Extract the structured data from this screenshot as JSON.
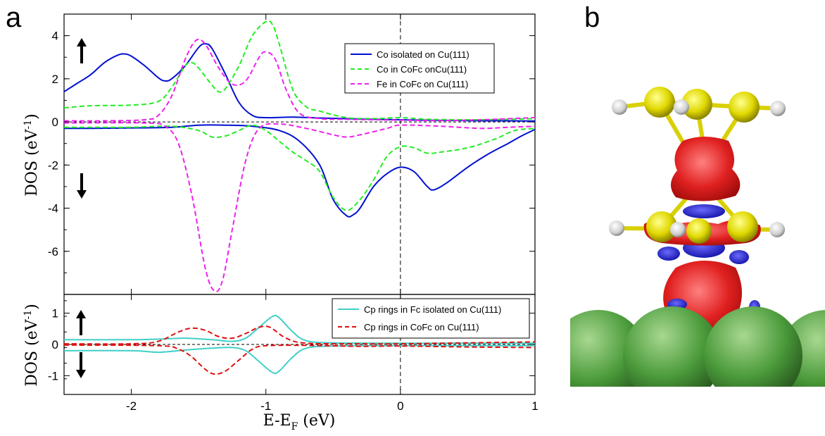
{
  "panels": {
    "left_label": "a",
    "right_label": "b"
  },
  "colors": {
    "co_isolated": "#0010d0",
    "co_in_cofc": "#22ee22",
    "fe_in_cofc": "#ee22ee",
    "cp_fc": "#40d0c8",
    "cp_cofc": "#e01010",
    "density_red": "#e02020",
    "density_blue": "#1a1ad8",
    "atom_c": "#e8e000",
    "atom_h": "#e8e8e8",
    "atom_cu": "#4a9a3a"
  },
  "chart_data": [
    {
      "type": "line",
      "xlim": [
        -2.5,
        1
      ],
      "ylim": [
        -8,
        5
      ],
      "x_ticks": [
        "-2",
        "-1",
        "0",
        "1"
      ],
      "y_ticks": [
        "4",
        "2",
        "0",
        "-2",
        "-4",
        "-6"
      ],
      "ylabel_base": "DOS (eV",
      "ylabel_exp": "-1",
      "ylabel_close": ")",
      "arrow_up": "spin-up-arrow-icon",
      "arrow_down": "spin-down-arrow-icon",
      "series": [
        {
          "name": "Co isolated on Cu(111)",
          "style": "solid",
          "up": [
            [
              -2.5,
              1.4
            ],
            [
              -2.4,
              1.8
            ],
            [
              -2.3,
              2.2
            ],
            [
              -2.2,
              2.75
            ],
            [
              -2.1,
              3.1
            ],
            [
              -2.05,
              3.15
            ],
            [
              -2.0,
              3.05
            ],
            [
              -1.9,
              2.6
            ],
            [
              -1.8,
              2.05
            ],
            [
              -1.75,
              1.9
            ],
            [
              -1.7,
              2.0
            ],
            [
              -1.6,
              2.6
            ],
            [
              -1.5,
              3.45
            ],
            [
              -1.45,
              3.62
            ],
            [
              -1.4,
              3.4
            ],
            [
              -1.3,
              2.2
            ],
            [
              -1.2,
              0.9
            ],
            [
              -1.1,
              0.3
            ],
            [
              -1.0,
              0.2
            ],
            [
              -0.8,
              0.22
            ],
            [
              -0.6,
              0.18
            ],
            [
              -0.4,
              0.15
            ],
            [
              -0.2,
              0.12
            ],
            [
              0.0,
              0.1
            ],
            [
              0.2,
              0.08
            ],
            [
              0.5,
              0.06
            ],
            [
              0.8,
              0.05
            ],
            [
              1.0,
              0.04
            ]
          ],
          "down": [
            [
              -2.5,
              -0.3
            ],
            [
              -2.3,
              -0.3
            ],
            [
              -2.0,
              -0.28
            ],
            [
              -1.7,
              -0.25
            ],
            [
              -1.5,
              -0.15
            ],
            [
              -1.3,
              -0.15
            ],
            [
              -1.1,
              -0.2
            ],
            [
              -0.9,
              -0.4
            ],
            [
              -0.75,
              -0.9
            ],
            [
              -0.6,
              -2.0
            ],
            [
              -0.5,
              -3.6
            ],
            [
              -0.4,
              -4.35
            ],
            [
              -0.35,
              -4.3
            ],
            [
              -0.3,
              -4.0
            ],
            [
              -0.2,
              -3.0
            ],
            [
              -0.1,
              -2.4
            ],
            [
              0.0,
              -2.1
            ],
            [
              0.1,
              -2.3
            ],
            [
              0.2,
              -3.0
            ],
            [
              0.25,
              -3.15
            ],
            [
              0.35,
              -2.8
            ],
            [
              0.5,
              -2.1
            ],
            [
              0.65,
              -1.5
            ],
            [
              0.8,
              -1.0
            ],
            [
              0.9,
              -0.65
            ],
            [
              1.0,
              -0.35
            ]
          ]
        },
        {
          "name": "Co in CoFc onCu(111)",
          "style": "dashed",
          "up": [
            [
              -2.5,
              0.65
            ],
            [
              -2.3,
              0.75
            ],
            [
              -2.0,
              0.78
            ],
            [
              -1.8,
              0.95
            ],
            [
              -1.7,
              1.6
            ],
            [
              -1.6,
              2.6
            ],
            [
              -1.55,
              2.75
            ],
            [
              -1.5,
              2.5
            ],
            [
              -1.4,
              1.7
            ],
            [
              -1.35,
              1.4
            ],
            [
              -1.3,
              1.55
            ],
            [
              -1.2,
              2.6
            ],
            [
              -1.1,
              4.0
            ],
            [
              -1.0,
              4.65
            ],
            [
              -0.95,
              4.5
            ],
            [
              -0.9,
              3.6
            ],
            [
              -0.8,
              1.5
            ],
            [
              -0.7,
              0.7
            ],
            [
              -0.6,
              0.5
            ],
            [
              -0.4,
              0.2
            ],
            [
              -0.2,
              0.15
            ],
            [
              0.0,
              0.2
            ],
            [
              0.2,
              0.12
            ],
            [
              0.5,
              0.1
            ],
            [
              0.8,
              0.12
            ],
            [
              1.0,
              0.15
            ]
          ],
          "down": [
            [
              -2.5,
              -0.25
            ],
            [
              -2.3,
              -0.25
            ],
            [
              -2.0,
              -0.25
            ],
            [
              -1.7,
              -0.2
            ],
            [
              -1.5,
              -0.4
            ],
            [
              -1.4,
              -0.7
            ],
            [
              -1.3,
              -0.65
            ],
            [
              -1.2,
              -0.4
            ],
            [
              -1.1,
              -0.15
            ],
            [
              -1.0,
              -0.4
            ],
            [
              -0.9,
              -0.9
            ],
            [
              -0.8,
              -1.4
            ],
            [
              -0.7,
              -1.8
            ],
            [
              -0.6,
              -2.3
            ],
            [
              -0.5,
              -3.5
            ],
            [
              -0.4,
              -4.1
            ],
            [
              -0.3,
              -3.6
            ],
            [
              -0.2,
              -2.7
            ],
            [
              -0.1,
              -1.6
            ],
            [
              0.0,
              -1.15
            ],
            [
              0.1,
              -1.2
            ],
            [
              0.2,
              -1.45
            ],
            [
              0.3,
              -1.4
            ],
            [
              0.5,
              -1.2
            ],
            [
              0.7,
              -0.8
            ],
            [
              0.85,
              -0.4
            ],
            [
              1.0,
              -0.3
            ]
          ]
        },
        {
          "name": "Fe in CoFc on Cu(111)",
          "style": "dashed",
          "up": [
            [
              -2.5,
              0.05
            ],
            [
              -2.2,
              0.05
            ],
            [
              -1.9,
              0.1
            ],
            [
              -1.8,
              0.3
            ],
            [
              -1.7,
              1.2
            ],
            [
              -1.6,
              2.9
            ],
            [
              -1.52,
              3.78
            ],
            [
              -1.45,
              3.6
            ],
            [
              -1.35,
              2.5
            ],
            [
              -1.25,
              1.75
            ],
            [
              -1.15,
              1.9
            ],
            [
              -1.05,
              3.0
            ],
            [
              -1.0,
              3.25
            ],
            [
              -0.93,
              2.9
            ],
            [
              -0.85,
              1.5
            ],
            [
              -0.75,
              0.4
            ],
            [
              -0.6,
              0.15
            ],
            [
              -0.4,
              0.12
            ],
            [
              -0.2,
              0.1
            ],
            [
              0.0,
              0.08
            ],
            [
              0.3,
              0.06
            ],
            [
              0.6,
              0.1
            ],
            [
              0.8,
              0.15
            ],
            [
              1.0,
              0.2
            ]
          ],
          "down": [
            [
              -2.5,
              -0.05
            ],
            [
              -1.9,
              -0.05
            ],
            [
              -1.75,
              -0.2
            ],
            [
              -1.65,
              -1.0
            ],
            [
              -1.55,
              -3.4
            ],
            [
              -1.45,
              -6.8
            ],
            [
              -1.38,
              -7.85
            ],
            [
              -1.32,
              -7.3
            ],
            [
              -1.25,
              -5.0
            ],
            [
              -1.15,
              -1.8
            ],
            [
              -1.05,
              -0.3
            ],
            [
              -0.9,
              -0.1
            ],
            [
              -0.7,
              -0.3
            ],
            [
              -0.5,
              -0.6
            ],
            [
              -0.4,
              -0.7
            ],
            [
              -0.3,
              -0.6
            ],
            [
              -0.1,
              -0.3
            ],
            [
              0.0,
              -0.15
            ],
            [
              0.3,
              -0.2
            ],
            [
              0.6,
              -0.3
            ],
            [
              0.8,
              -0.25
            ],
            [
              1.0,
              -0.2
            ]
          ]
        }
      ]
    },
    {
      "type": "line",
      "xlim": [
        -2.5,
        1
      ],
      "ylim": [
        -1.6,
        1.6
      ],
      "x_ticks": [
        "-2",
        "-1",
        "0",
        "1"
      ],
      "y_ticks": [
        "1",
        "0",
        "-1"
      ],
      "xlabel_base": "E-E",
      "xlabel_sub": "F",
      "xlabel_unit": " (eV)",
      "ylabel_base": "DOS (eV",
      "ylabel_exp": "-1",
      "ylabel_close": ")",
      "series": [
        {
          "name": "Cp rings in Fc isolated on Cu(111)",
          "style": "solid",
          "up": [
            [
              -2.5,
              0.15
            ],
            [
              -2.0,
              0.15
            ],
            [
              -1.8,
              0.17
            ],
            [
              -1.6,
              0.2
            ],
            [
              -1.4,
              0.15
            ],
            [
              -1.25,
              0.1
            ],
            [
              -1.15,
              0.2
            ],
            [
              -1.05,
              0.55
            ],
            [
              -0.95,
              0.9
            ],
            [
              -0.9,
              0.85
            ],
            [
              -0.8,
              0.4
            ],
            [
              -0.7,
              0.12
            ],
            [
              -0.5,
              0.05
            ],
            [
              0.0,
              0.04
            ],
            [
              0.5,
              0.04
            ],
            [
              1.0,
              0.04
            ]
          ],
          "down": [
            [
              -2.5,
              -0.2
            ],
            [
              -2.0,
              -0.2
            ],
            [
              -1.8,
              -0.25
            ],
            [
              -1.6,
              -0.18
            ],
            [
              -1.4,
              -0.12
            ],
            [
              -1.25,
              -0.1
            ],
            [
              -1.15,
              -0.2
            ],
            [
              -1.05,
              -0.55
            ],
            [
              -0.95,
              -0.9
            ],
            [
              -0.9,
              -0.85
            ],
            [
              -0.8,
              -0.4
            ],
            [
              -0.7,
              -0.12
            ],
            [
              -0.5,
              -0.05
            ],
            [
              0.0,
              -0.04
            ],
            [
              0.5,
              -0.04
            ],
            [
              1.0,
              -0.04
            ]
          ]
        },
        {
          "name": "Cp rings in CoFc on Cu(111)",
          "style": "dashed",
          "up": [
            [
              -2.5,
              0.02
            ],
            [
              -2.0,
              0.02
            ],
            [
              -1.8,
              0.1
            ],
            [
              -1.65,
              0.4
            ],
            [
              -1.55,
              0.52
            ],
            [
              -1.45,
              0.45
            ],
            [
              -1.35,
              0.25
            ],
            [
              -1.25,
              0.2
            ],
            [
              -1.15,
              0.35
            ],
            [
              -1.05,
              0.55
            ],
            [
              -0.97,
              0.55
            ],
            [
              -0.85,
              0.2
            ],
            [
              -0.7,
              0.04
            ],
            [
              -0.3,
              0.02
            ],
            [
              0.0,
              0.02
            ],
            [
              0.5,
              0.05
            ],
            [
              1.0,
              0.08
            ]
          ],
          "down": [
            [
              -2.5,
              -0.02
            ],
            [
              -1.8,
              -0.04
            ],
            [
              -1.65,
              -0.15
            ],
            [
              -1.55,
              -0.4
            ],
            [
              -1.45,
              -0.8
            ],
            [
              -1.38,
              -0.95
            ],
            [
              -1.3,
              -0.85
            ],
            [
              -1.2,
              -0.5
            ],
            [
              -1.1,
              -0.15
            ],
            [
              -1.0,
              -0.04
            ],
            [
              -0.7,
              -0.03
            ],
            [
              -0.3,
              -0.06
            ],
            [
              0.0,
              -0.05
            ],
            [
              0.5,
              -0.08
            ],
            [
              1.0,
              -0.1
            ]
          ]
        }
      ]
    }
  ]
}
